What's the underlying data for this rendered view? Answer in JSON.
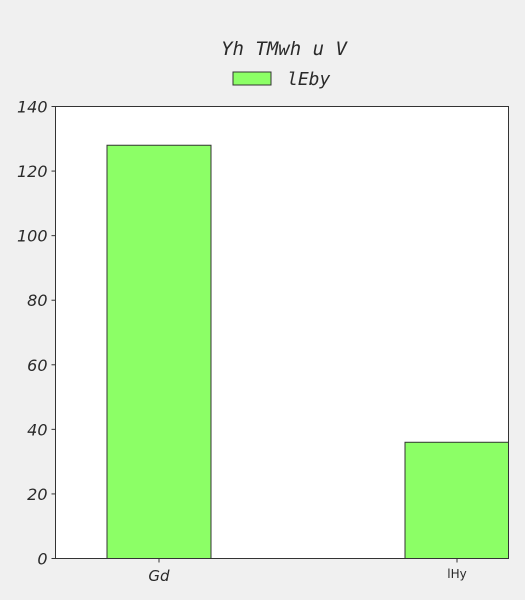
{
  "chart_data": {
    "type": "bar",
    "title": "Yh TMwh u V",
    "categories": [
      "Gd",
      "lHy"
    ],
    "series": [
      {
        "name": "lEby",
        "values": [
          128,
          36
        ],
        "color": "#8cff66"
      }
    ],
    "xlabel": "",
    "ylabel": "",
    "ylim": [
      0,
      140
    ],
    "yticks": [
      "0",
      "20",
      "40",
      "60",
      "80",
      "100",
      "120",
      "140"
    ],
    "grid": false,
    "legend_position": "top-center",
    "plot_background": "#ffffff",
    "figure_background": "#f0f0f0"
  }
}
